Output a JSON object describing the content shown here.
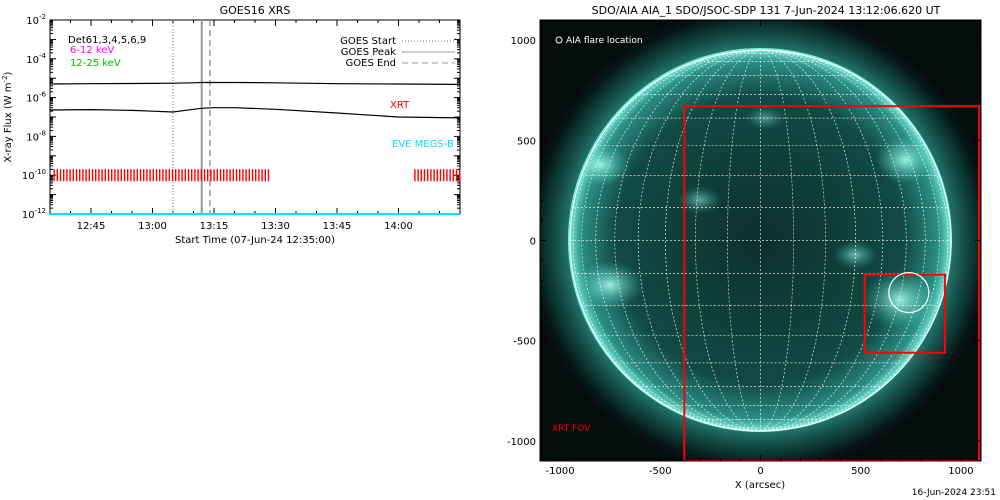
{
  "colors": {
    "flux_line": "#000000",
    "xrt_marks": "#ff0000",
    "eve_line": "#00e5ff",
    "goes_flag_line": "#999999",
    "legend_6_12": "#ff00ff",
    "legend_12_25": "#00c000",
    "disk_base": "#0f3d3a",
    "disk_bright": "#5fd8c8",
    "grid": "#ffffff",
    "fov": "#ff0000"
  },
  "goes": {
    "title": "GOES16 XRS",
    "ylabel_prefix": "X-ray Flux (W m",
    "ylabel_exp": "-2",
    "ylabel_suffix": ")",
    "xlabel": "Start Time (07-Jun-24 12:35:00)",
    "det_label": "Det61,3,4,5,6,9",
    "legend_6_12": "6-12 keV",
    "legend_12_25": "12-25 keV",
    "legend_start": "GOES Start",
    "legend_peak": "GOES Peak",
    "legend_end": "GOES End",
    "xrt_label": "XRT",
    "eve_label": "EVE MEGS-B"
  },
  "aia": {
    "title": "SDO/AIA AIA_1 SDO/JSOC-SDP 131  7-Jun-2024 13:12:06.620 UT",
    "xlabel": "X (arcsec)",
    "flare_legend": "AIA flare location",
    "fov_label": "XRT FOV",
    "x_ticks": [
      "-1000",
      "-500",
      "0",
      "500",
      "1000"
    ],
    "y_ticks": [
      "1000",
      "500",
      "0",
      "-500",
      "-1000"
    ]
  },
  "footer_timestamp": "16-Jun-2024 23:51",
  "chart_data": [
    {
      "type": "line",
      "title": "GOES16 XRS",
      "xlabel": "Start Time (07-Jun-24 12:35:00)",
      "ylabel": "X-ray Flux (W m^-2)",
      "yscale": "log",
      "ylim": [
        1e-12,
        0.01
      ],
      "y_ticks": [
        "10^-2",
        "10^-4",
        "10^-6",
        "10^-8",
        "10^-10",
        "10^-12"
      ],
      "xlim": [
        "12:35",
        "14:15"
      ],
      "x_ticks": [
        "12:45",
        "13:00",
        "13:15",
        "13:30",
        "13:45",
        "14:00"
      ],
      "series": [
        {
          "time": [
            "12:35",
            "12:45",
            "12:55",
            "13:00",
            "13:05",
            "13:10",
            "13:12",
            "13:15",
            "13:20",
            "13:30",
            "13:45",
            "14:00",
            "14:15"
          ],
          "flux": [
            5e-06,
            5.2e-06,
            5.3e-06,
            5.4e-06,
            5.5e-06,
            5.8e-06,
            6e-06,
            6e-06,
            6e-06,
            5.8e-06,
            5.2e-06,
            5e-06,
            4.8e-06
          ]
        },
        {
          "time": [
            "12:35",
            "12:45",
            "12:55",
            "13:00",
            "13:05",
            "13:10",
            "13:12",
            "13:15",
            "13:20",
            "13:30",
            "13:45",
            "14:00",
            "14:15"
          ],
          "flux": [
            2.3e-07,
            2.4e-07,
            2.2e-07,
            2e-07,
            1.8e-07,
            2.5e-07,
            2.8e-07,
            3e-07,
            3e-07,
            2.5e-07,
            1.6e-07,
            1e-07,
            9e-08
          ]
        },
        {
          "name": "EVE MEGS-B",
          "time": [
            "12:35",
            "14:15"
          ],
          "flux": [
            1e-12,
            1e-12
          ]
        }
      ],
      "xrt_coverage": [
        {
          "start": "12:36",
          "end": "13:29"
        },
        {
          "start": "14:04",
          "end": "14:15"
        }
      ],
      "xrt_level": 1e-10,
      "goes_start": "13:05",
      "goes_peak": "13:12",
      "goes_end": "13:14"
    },
    {
      "type": "image",
      "title": "SDO/AIA AIA_1 SDO/JSOC-SDP 131  7-Jun-2024 13:12:06.620 UT",
      "xlabel": "X (arcsec)",
      "xlim": [
        -1100,
        1100
      ],
      "ylim": [
        -1100,
        1100
      ],
      "xrt_fov": {
        "x": [
          -380,
          1090
        ],
        "y": [
          -1100,
          670
        ]
      },
      "flare_box": {
        "x": [
          520,
          920
        ],
        "y": [
          -560,
          -170
        ]
      },
      "flare_location": {
        "x": 740,
        "y": -260
      }
    }
  ]
}
